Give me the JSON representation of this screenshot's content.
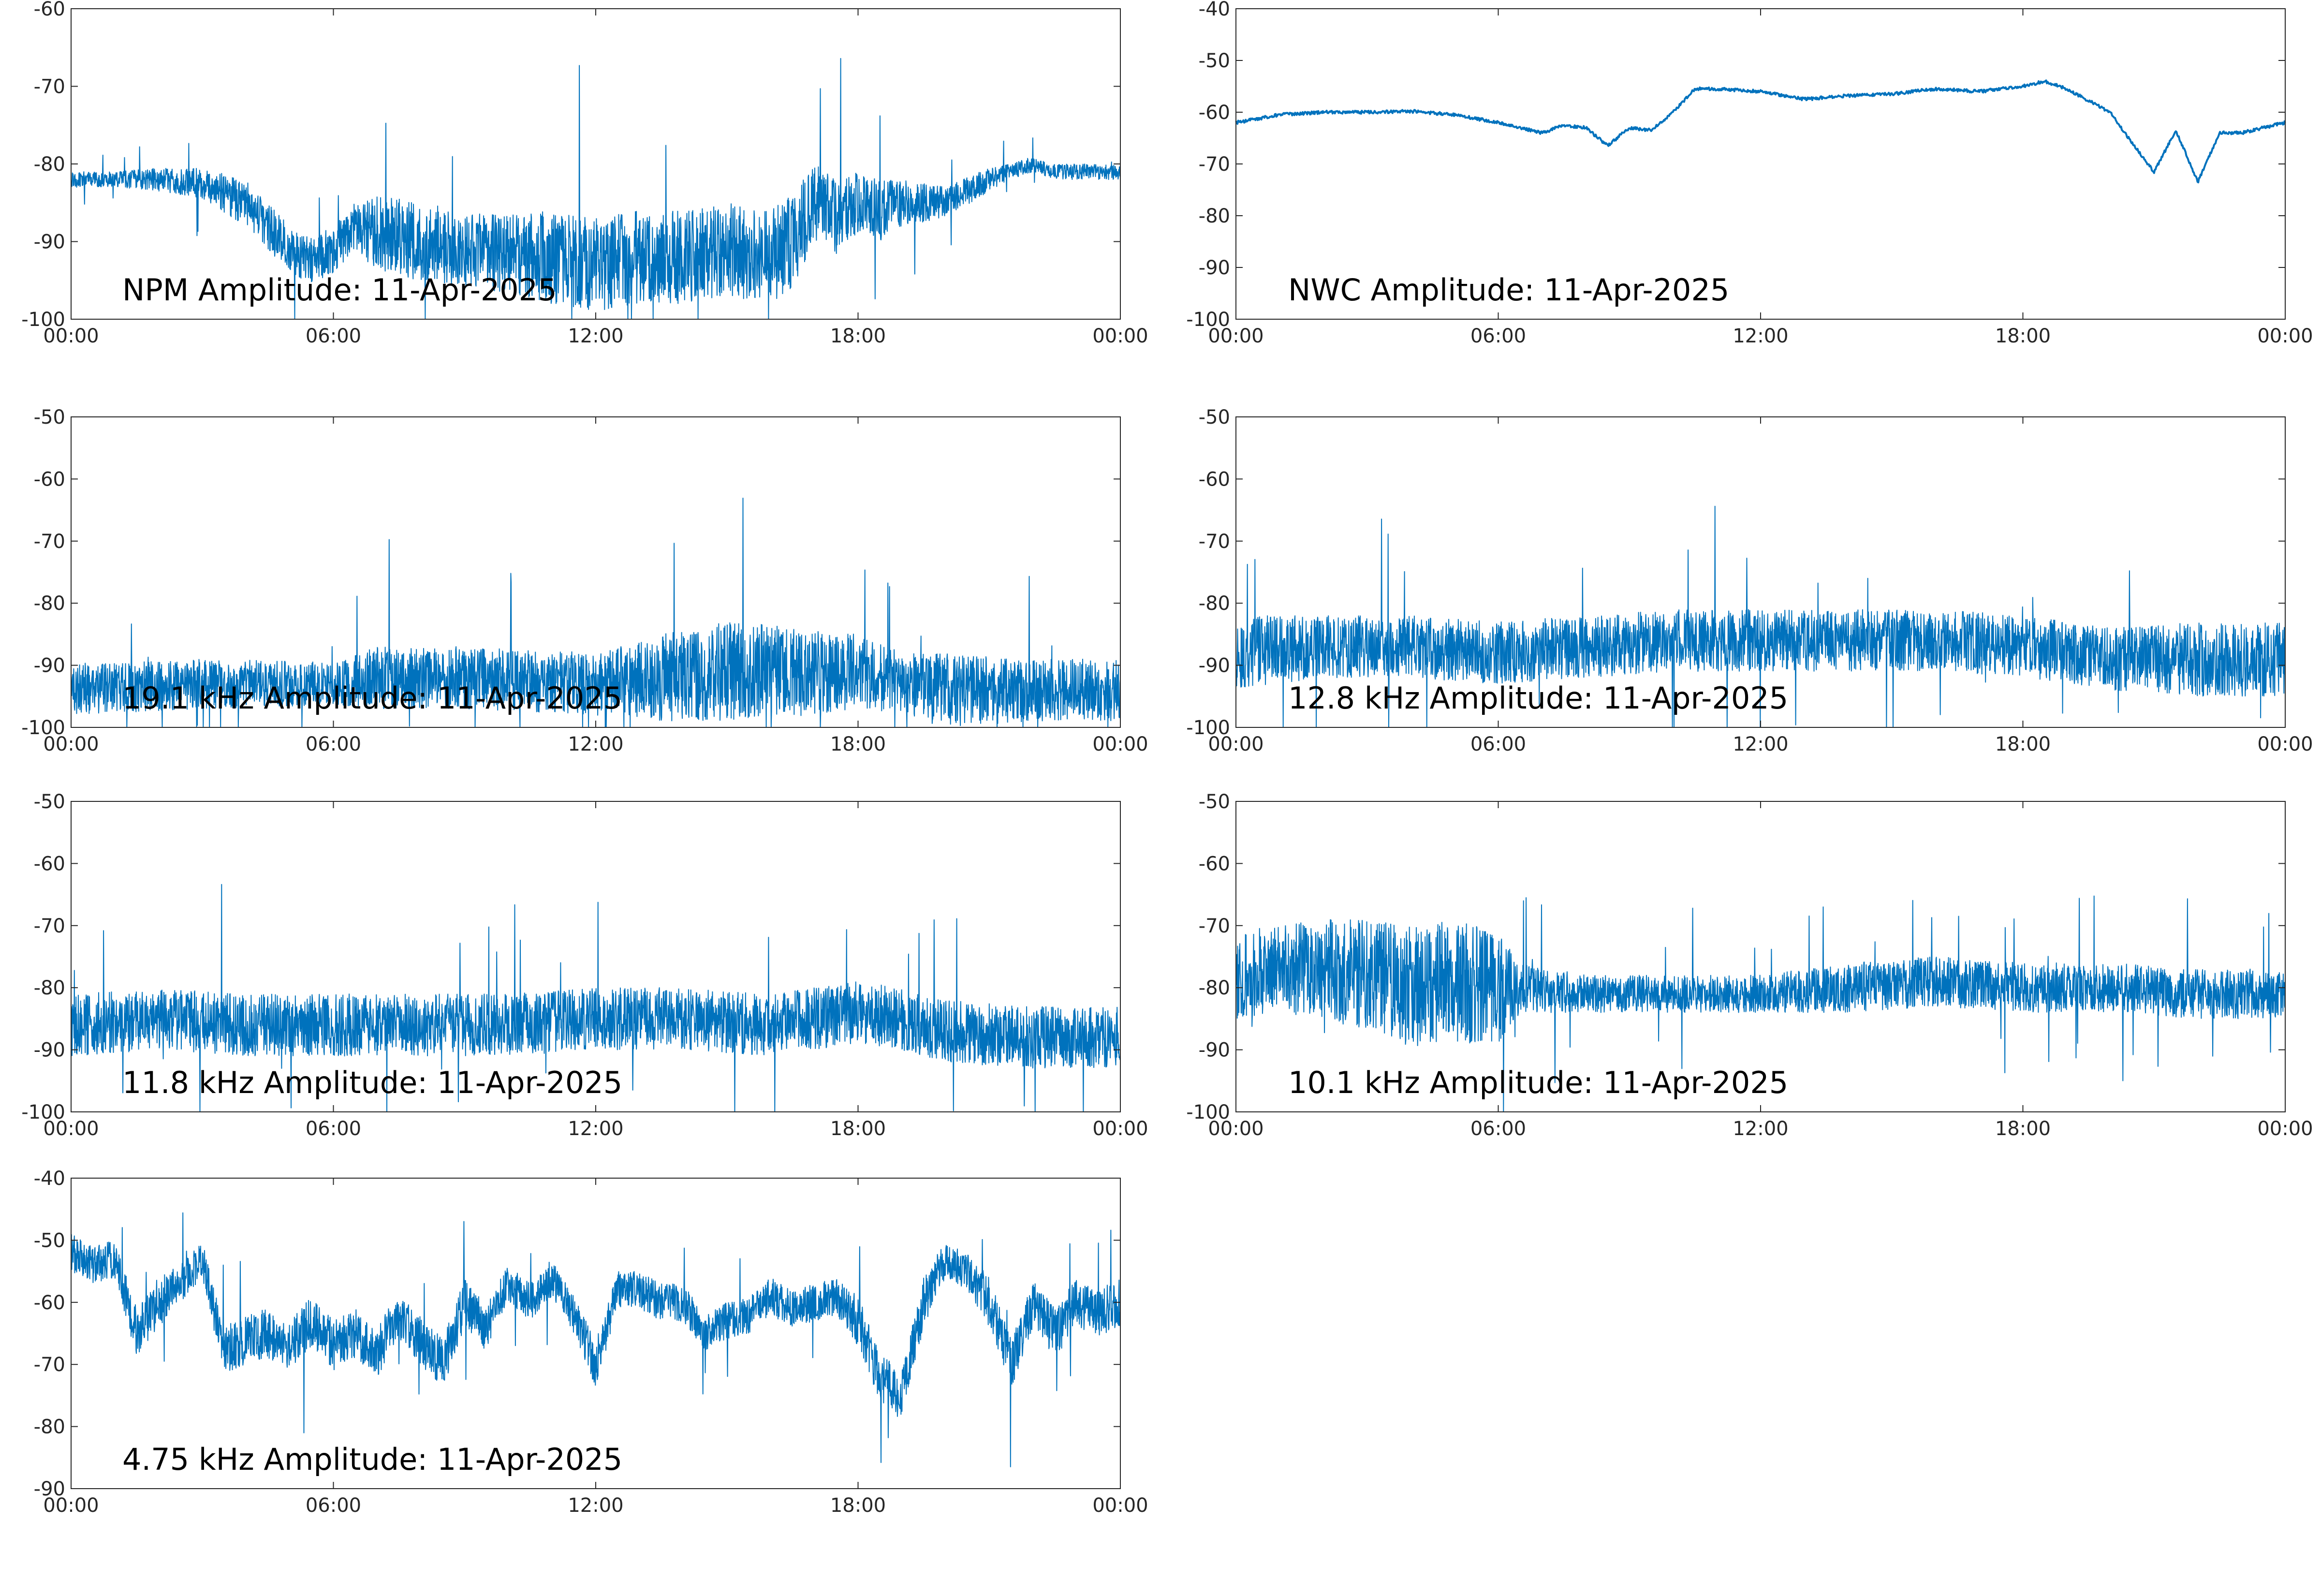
{
  "series_color": "#0072bd",
  "x_tick_labels": [
    "00:00",
    "06:00",
    "12:00",
    "18:00",
    "00:00"
  ],
  "chart_data": [
    {
      "type": "line",
      "title": "NPM Amplitude: 11-Apr-2025",
      "x_range": [
        "00:00",
        "24:00"
      ],
      "ylim": [
        -100,
        -60
      ],
      "y_ticks": [
        -100,
        -90,
        -80,
        -70,
        -60
      ],
      "grid": false,
      "series": [
        {
          "x": [
            "00:00",
            "01:00",
            "02:00",
            "03:00",
            "04:00",
            "04:30",
            "05:00",
            "05:30",
            "06:00",
            "06:30",
            "07:00",
            "08:00",
            "09:00",
            "10:00",
            "11:00",
            "12:00",
            "13:00",
            "14:00",
            "15:00",
            "16:00",
            "16:30",
            "17:00",
            "17:30",
            "18:00",
            "18:30",
            "19:00",
            "20:00",
            "21:00",
            "21:30",
            "22:00",
            "22:30",
            "23:00",
            "24:00"
          ],
          "values": [
            -82,
            -82,
            -82,
            -82.5,
            -85,
            -88,
            -91,
            -92.5,
            -91,
            -88,
            -89,
            -90,
            -91,
            -91.5,
            -92,
            -93,
            -92,
            -92,
            -91,
            -92,
            -90,
            -85,
            -87,
            -85,
            -86,
            -85,
            -85,
            -82,
            -81,
            -80,
            -81,
            -81,
            -81
          ],
          "spread": [
            1,
            1,
            1.5,
            2,
            3,
            3,
            3,
            3,
            3,
            3,
            5,
            5,
            5,
            5,
            6,
            6,
            6,
            6,
            6,
            6,
            6,
            5,
            5,
            4,
            4,
            3,
            2,
            1.5,
            1,
            1,
            1,
            1,
            1
          ]
        }
      ]
    },
    {
      "type": "line",
      "title": "NWC Amplitude: 11-Apr-2025",
      "x_range": [
        "00:00",
        "24:00"
      ],
      "ylim": [
        -100,
        -40
      ],
      "y_ticks": [
        -100,
        -90,
        -80,
        -70,
        -60,
        -50,
        -40
      ],
      "grid": false,
      "series": [
        {
          "x": [
            "00:00",
            "01:00",
            "02:00",
            "03:00",
            "04:00",
            "05:00",
            "06:00",
            "07:00",
            "07:30",
            "08:00",
            "08:30",
            "09:00",
            "09:30",
            "10:00",
            "10:30",
            "11:00",
            "12:00",
            "13:00",
            "14:00",
            "15:00",
            "16:00",
            "17:00",
            "18:00",
            "18:30",
            "19:00",
            "20:00",
            "20:30",
            "21:00",
            "21:30",
            "22:00",
            "22:30",
            "23:00",
            "24:00"
          ],
          "values": [
            -62,
            -60.5,
            -60,
            -60,
            -59.8,
            -60.5,
            -62,
            -64,
            -62.5,
            -63,
            -66.5,
            -63,
            -63.5,
            -60,
            -55.5,
            -55.5,
            -56,
            -57.5,
            -56.8,
            -56.5,
            -55.5,
            -56,
            -55,
            -54,
            -55.5,
            -60,
            -66,
            -71.5,
            -63.5,
            -73.5,
            -64,
            -64,
            -62
          ],
          "spread": [
            0.3,
            0.3,
            0.3,
            0.3,
            0.3,
            0.3,
            0.3,
            0.3,
            0.3,
            0.3,
            0.3,
            0.3,
            0.3,
            0.3,
            0.3,
            0.3,
            0.3,
            0.3,
            0.3,
            0.3,
            0.3,
            0.3,
            0.3,
            0.3,
            0.3,
            0.3,
            0.3,
            0.3,
            0.3,
            0.3,
            0.3,
            0.3,
            0.3
          ]
        }
      ]
    },
    {
      "type": "line",
      "title": "19.1 kHz Amplitude: 11-Apr-2025",
      "x_range": [
        "00:00",
        "24:00"
      ],
      "ylim": [
        -100,
        -50
      ],
      "y_ticks": [
        -100,
        -90,
        -80,
        -70,
        -60,
        -50
      ],
      "grid": false,
      "series": [
        {
          "x": [
            "00:00",
            "03:00",
            "06:00",
            "07:00",
            "09:00",
            "12:00",
            "13:30",
            "15:00",
            "17:00",
            "18:00",
            "19:00",
            "20:00",
            "22:00",
            "24:00"
          ],
          "values": [
            -94,
            -93,
            -93,
            -92,
            -92,
            -93,
            -92,
            -91,
            -91,
            -91,
            -93,
            -94,
            -94,
            -94
          ],
          "spread": [
            4,
            4,
            3.5,
            5,
            5,
            5,
            7,
            8,
            7,
            6,
            5,
            6,
            5,
            5
          ]
        }
      ]
    },
    {
      "type": "line",
      "title": "12.8 kHz Amplitude: 11-Apr-2025",
      "x_range": [
        "00:00",
        "24:00"
      ],
      "ylim": [
        -100,
        -50
      ],
      "y_ticks": [
        -100,
        -90,
        -80,
        -70,
        -60,
        -50
      ],
      "grid": false,
      "series": [
        {
          "x": [
            "00:00",
            "02:00",
            "04:00",
            "06:00",
            "08:00",
            "10:00",
            "12:00",
            "14:00",
            "16:00",
            "18:00",
            "20:00",
            "22:00",
            "24:00"
          ],
          "values": [
            -88,
            -87,
            -87,
            -88,
            -87,
            -86,
            -86,
            -86,
            -86,
            -87,
            -89,
            -89,
            -89
          ],
          "spread": [
            6,
            5,
            5,
            5,
            5,
            5,
            5,
            5,
            5,
            5,
            5,
            6,
            6
          ]
        }
      ]
    },
    {
      "type": "line",
      "title": "11.8 kHz Amplitude: 11-Apr-2025",
      "x_range": [
        "00:00",
        "24:00"
      ],
      "ylim": [
        -100,
        -50
      ],
      "y_ticks": [
        -100,
        -90,
        -80,
        -70,
        -60,
        -50
      ],
      "grid": false,
      "series": [
        {
          "x": [
            "00:00",
            "02:00",
            "04:00",
            "06:00",
            "08:00",
            "10:00",
            "12:00",
            "14:00",
            "16:00",
            "18:00",
            "19:00",
            "20:00",
            "22:00",
            "24:00"
          ],
          "values": [
            -86,
            -85,
            -86,
            -86,
            -86,
            -86,
            -85,
            -85,
            -86,
            -84,
            -85,
            -87,
            -88,
            -88
          ],
          "spread": [
            5,
            5,
            5,
            5,
            5,
            5,
            5,
            5,
            5,
            5,
            5,
            5,
            5,
            5
          ]
        }
      ]
    },
    {
      "type": "line",
      "title": "10.1 kHz Amplitude: 11-Apr-2025",
      "x_range": [
        "00:00",
        "24:00"
      ],
      "ylim": [
        -100,
        -50
      ],
      "y_ticks": [
        -100,
        -90,
        -80,
        -70,
        -60,
        -50
      ],
      "grid": false,
      "series": [
        {
          "x": [
            "00:00",
            "01:00",
            "02:00",
            "03:00",
            "04:00",
            "05:00",
            "06:00",
            "06:30",
            "08:00",
            "10:00",
            "12:00",
            "14:00",
            "16:00",
            "18:00",
            "20:00",
            "22:00",
            "24:00"
          ],
          "values": [
            -78,
            -77,
            -77,
            -78,
            -80,
            -79,
            -80,
            -80,
            -81,
            -81,
            -81,
            -80,
            -79,
            -80,
            -80,
            -81,
            -81
          ],
          "spread": [
            7,
            7,
            8,
            9,
            10,
            10,
            9,
            4,
            3,
            3,
            3,
            4,
            4,
            4,
            4,
            4,
            4
          ]
        }
      ]
    },
    {
      "type": "line",
      "title": "4.75 kHz Amplitude: 11-Apr-2025",
      "x_range": [
        "00:00",
        "24:00"
      ],
      "ylim": [
        -90,
        -40
      ],
      "y_ticks": [
        -90,
        -80,
        -70,
        -60,
        -50,
        -40
      ],
      "grid": false,
      "series": [
        {
          "x": [
            "00:00",
            "00:30",
            "01:00",
            "01:30",
            "02:00",
            "02:30",
            "03:00",
            "03:30",
            "04:00",
            "04:30",
            "05:00",
            "05:30",
            "06:00",
            "06:30",
            "07:00",
            "07:30",
            "08:00",
            "08:30",
            "09:00",
            "09:30",
            "10:00",
            "10:30",
            "11:00",
            "11:30",
            "12:00",
            "12:30",
            "13:00",
            "13:30",
            "14:00",
            "14:30",
            "15:00",
            "15:30",
            "16:00",
            "16:30",
            "17:00",
            "17:30",
            "18:00",
            "18:30",
            "19:00",
            "19:30",
            "20:00",
            "20:30",
            "21:00",
            "21:30",
            "22:00",
            "22:30",
            "23:00",
            "23:30",
            "24:00"
          ],
          "values": [
            -52,
            -54,
            -53,
            -65,
            -60,
            -57,
            -53,
            -68,
            -66,
            -65,
            -67,
            -63,
            -67,
            -65,
            -68,
            -62,
            -66,
            -70,
            -60,
            -64,
            -57,
            -60,
            -56,
            -62,
            -70,
            -58,
            -58,
            -60,
            -60,
            -65,
            -63,
            -62,
            -59,
            -61,
            -60,
            -59,
            -63,
            -72,
            -75,
            -60,
            -53,
            -55,
            -60,
            -70,
            -60,
            -65,
            -60,
            -62,
            -60
          ],
          "spread": [
            3,
            3,
            3,
            4,
            4,
            3,
            3,
            4,
            4,
            4,
            4,
            4,
            4,
            4,
            4,
            4,
            4,
            4,
            4,
            4,
            3,
            3,
            3,
            3,
            4,
            3,
            3,
            3,
            3,
            3,
            3,
            3,
            3,
            3,
            3,
            3,
            4,
            4,
            4,
            4,
            3,
            3,
            4,
            4,
            4,
            4,
            4,
            4,
            4
          ]
        }
      ]
    }
  ]
}
